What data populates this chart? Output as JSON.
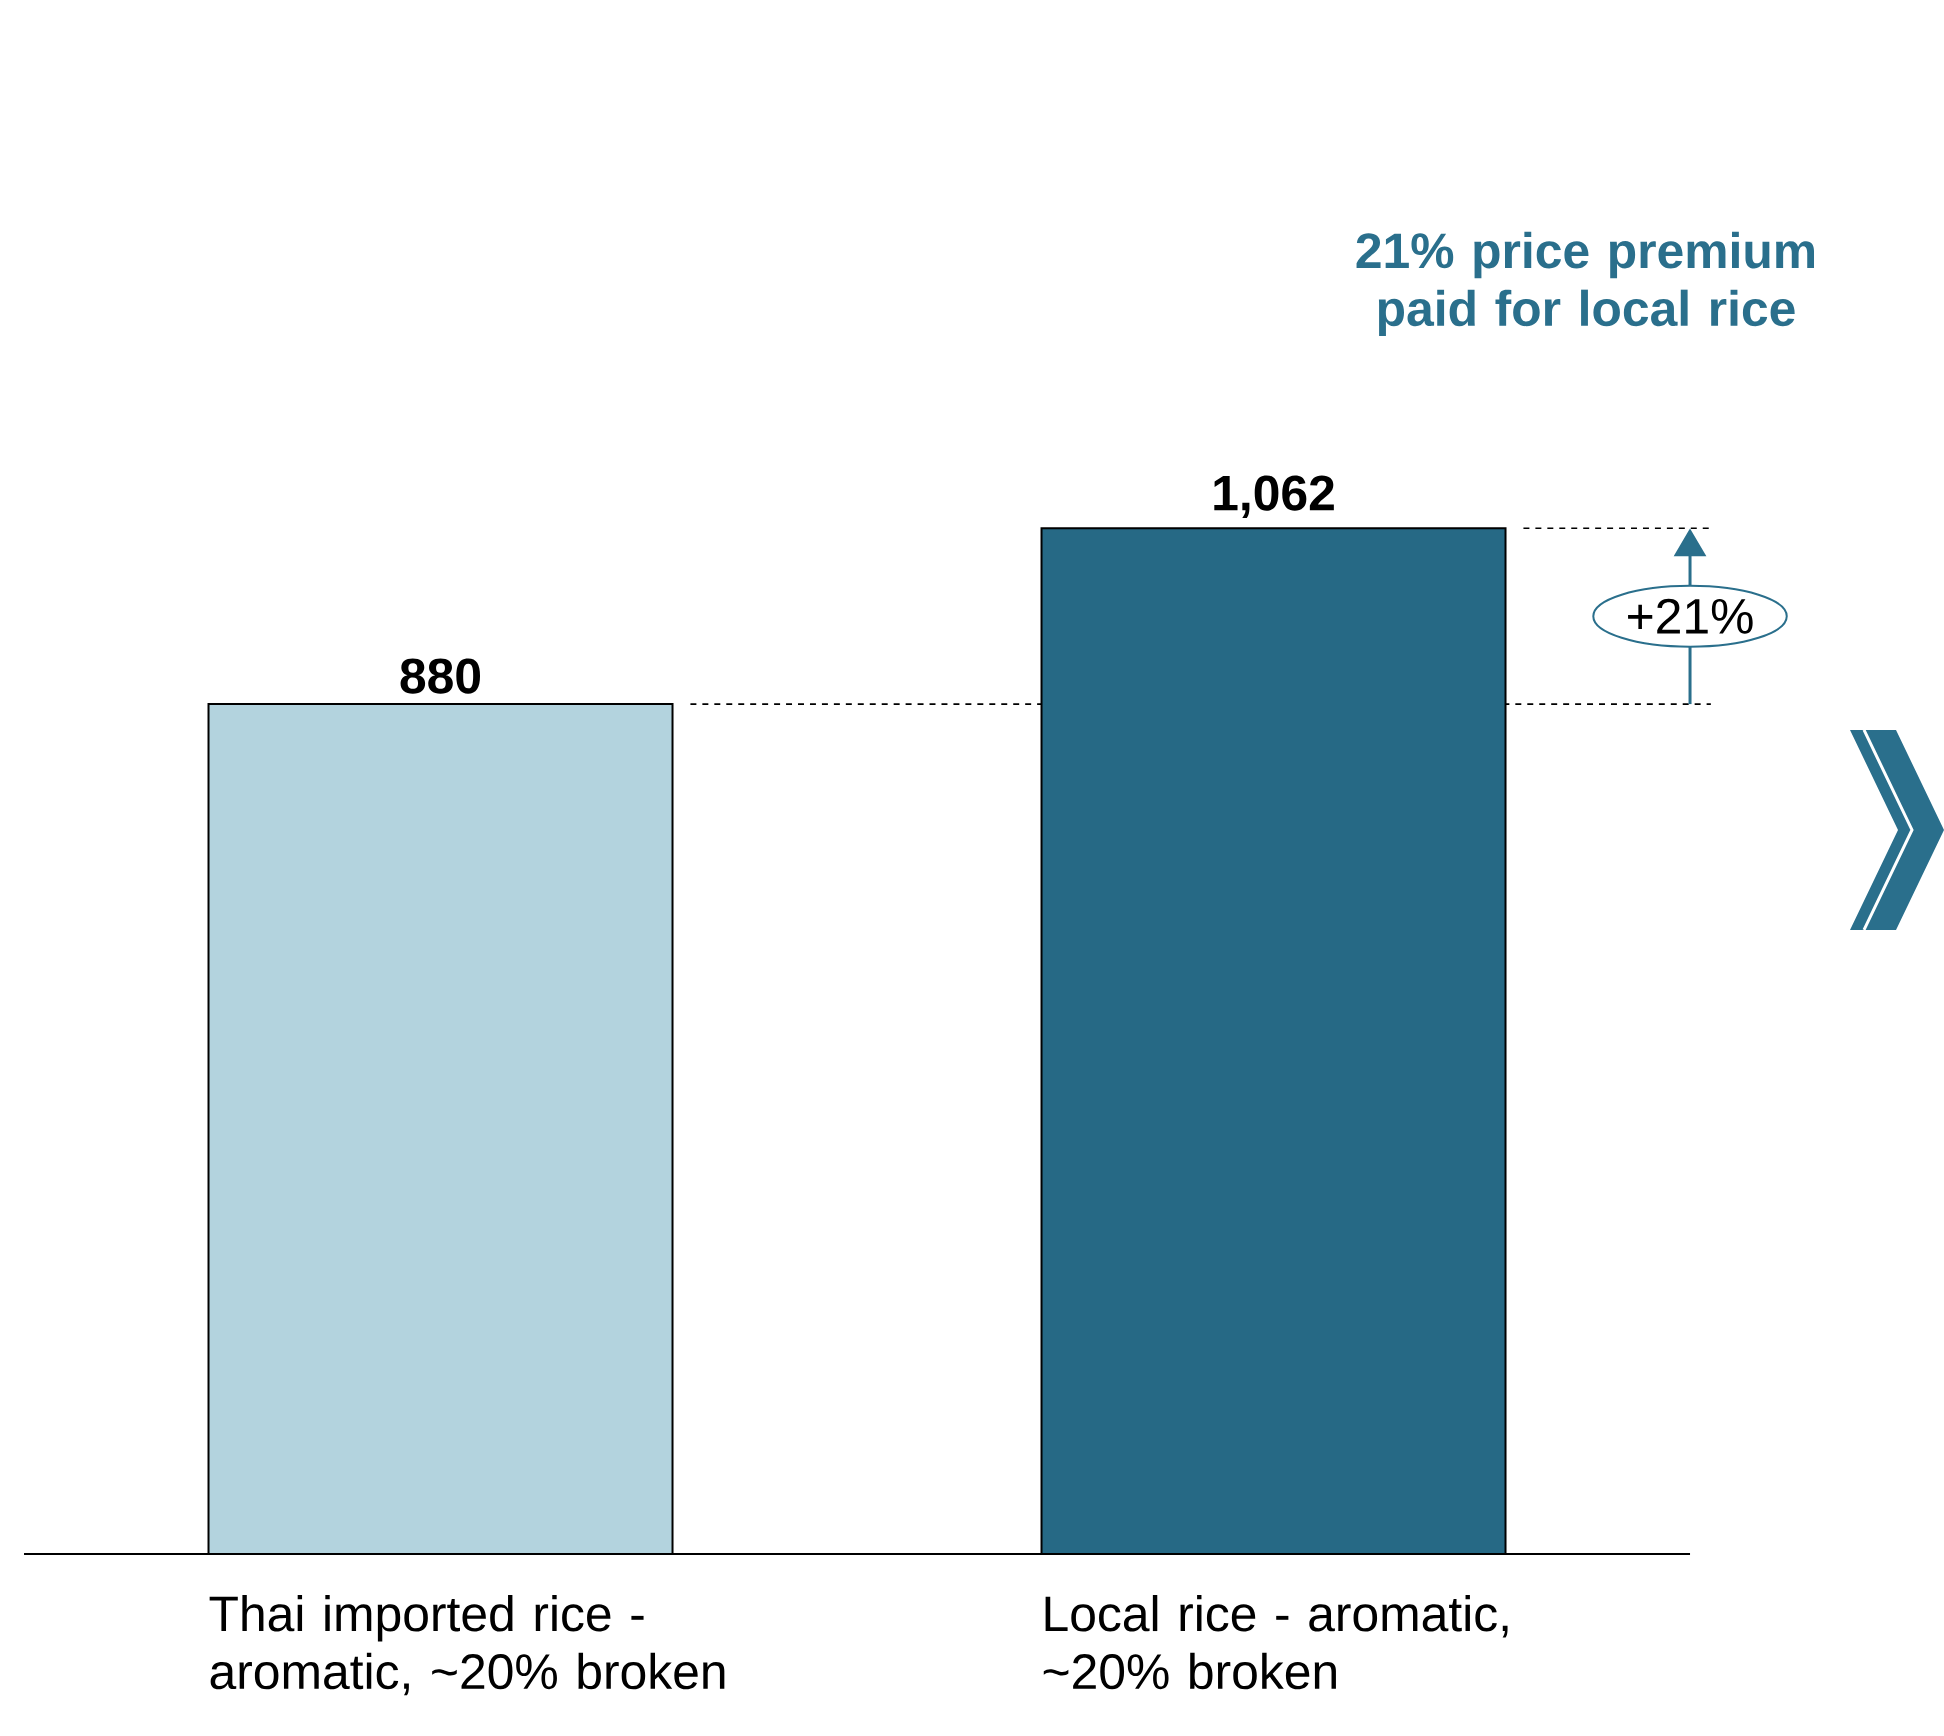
{
  "chart_data": {
    "type": "bar",
    "title": "21% price premium paid for local rice",
    "categories": [
      "Thai imported rice - aromatic, ~20% broken",
      "Local rice - aromatic, ~20% broken"
    ],
    "values": [
      880,
      1062
    ],
    "colors": [
      "#b3d3de",
      "#266985"
    ],
    "value_labels": [
      "880",
      "1,062"
    ],
    "ref_lines": [
      {
        "axis": "y",
        "value": 880,
        "line_style": "dashed"
      }
    ],
    "annotations": [
      "+21%"
    ]
  }
}
